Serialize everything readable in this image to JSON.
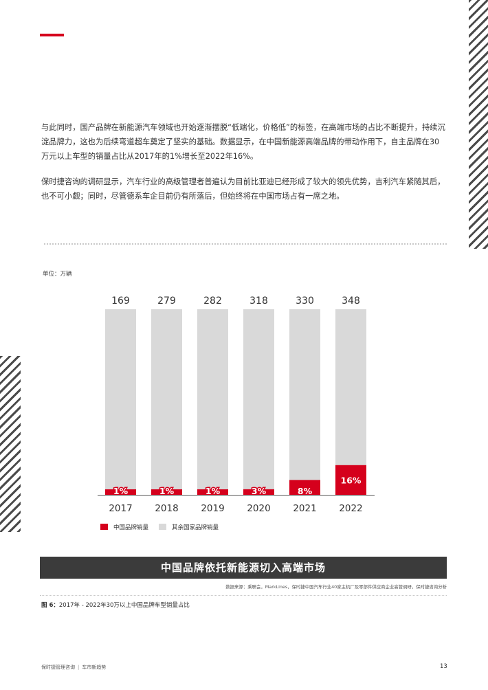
{
  "colors": {
    "accent": "#d5001c",
    "other": "#d9d9d9",
    "banner": "#3b3b3b"
  },
  "body": {
    "para1": "与此同时，国产品牌在新能源汽车领域也开始逐渐摆脱“低端化，价格低”的标签，在高端市场的占比不断提升，持续沉淀品牌力，这也为后续弯道超车奠定了坚实的基础。数据显示，在中国新能源高端品牌的带动作用下，自主品牌在30万元以上车型的销量占比从2017年的1%增长至2022年16%。",
    "para2": "保时捷咨询的调研显示，汽车行业的高级管理者普遍认为目前比亚迪已经形成了较大的领先优势，吉利汽车紧随其后，也不可小觑；同时，尽管德系车企目前仍有所落后，但始终将在中国市场占有一席之地。"
  },
  "chart_data": {
    "type": "bar",
    "unit_label": "单位：万辆",
    "categories": [
      "2017",
      "2018",
      "2019",
      "2020",
      "2021",
      "2022"
    ],
    "totals": [
      169,
      279,
      282,
      318,
      330,
      348
    ],
    "series": [
      {
        "name": "中国品牌销量",
        "share_percent": [
          1,
          1,
          1,
          3,
          8,
          16
        ],
        "labels": [
          "1%",
          "1%",
          "1%",
          "3%",
          "8%",
          "16%"
        ],
        "color": "#d5001c"
      },
      {
        "name": "其余国家品牌销量",
        "color": "#d9d9d9"
      }
    ],
    "stacked": true,
    "normalized_to_100_percent": true,
    "grid": false,
    "legend_position": "bottom-left",
    "title": "中国品牌依托新能源切入高端市场"
  },
  "source": "数据来源：乘联会，MarkLines，保时捷中国汽车行业40家主机厂及零部件供应商企业高管调研，保时捷咨询分析",
  "caption": {
    "label": "图 6：",
    "text": "2017年 - 2022年30万以上中国品牌车型销量占比"
  },
  "footer": {
    "brand": "保时捷管理咨询",
    "section": "车市新趋势",
    "page": "13"
  }
}
